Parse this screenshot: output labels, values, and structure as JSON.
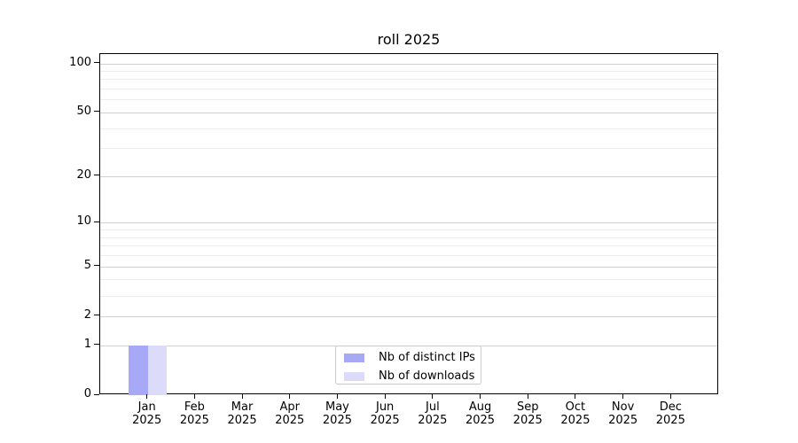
{
  "chart_data": {
    "type": "bar",
    "title": "roll 2025",
    "categories": [
      "Jan\n2025",
      "Feb\n2025",
      "Mar\n2025",
      "Apr\n2025",
      "May\n2025",
      "Jun\n2025",
      "Jul\n2025",
      "Aug\n2025",
      "Sep\n2025",
      "Oct\n2025",
      "Nov\n2025",
      "Dec\n2025"
    ],
    "series": [
      {
        "name": "Nb of distinct IPs",
        "color": "#a8a9f6",
        "values": [
          1,
          0,
          0,
          0,
          0,
          0,
          0,
          0,
          0,
          0,
          0,
          0
        ]
      },
      {
        "name": "Nb of downloads",
        "color": "#dcdcfa",
        "values": [
          1,
          0,
          0,
          0,
          0,
          0,
          0,
          0,
          0,
          0,
          0,
          0
        ]
      }
    ],
    "xlabel": "",
    "ylabel": "",
    "yscale": "log1p",
    "ylim": [
      0,
      114
    ],
    "yticks": [
      0,
      1,
      2,
      5,
      10,
      20,
      50,
      100
    ],
    "yticks_minor": [
      3,
      4,
      6,
      7,
      8,
      9,
      30,
      40,
      60,
      70,
      80,
      90
    ],
    "grid": true,
    "legend_position": "lower center"
  },
  "colors": {
    "background": "#ffffff",
    "spine": "#000000",
    "text": "#000000",
    "grid_major": "#d0d0d0",
    "grid_minor": "#ececec",
    "legend_border": "#cccccc"
  }
}
